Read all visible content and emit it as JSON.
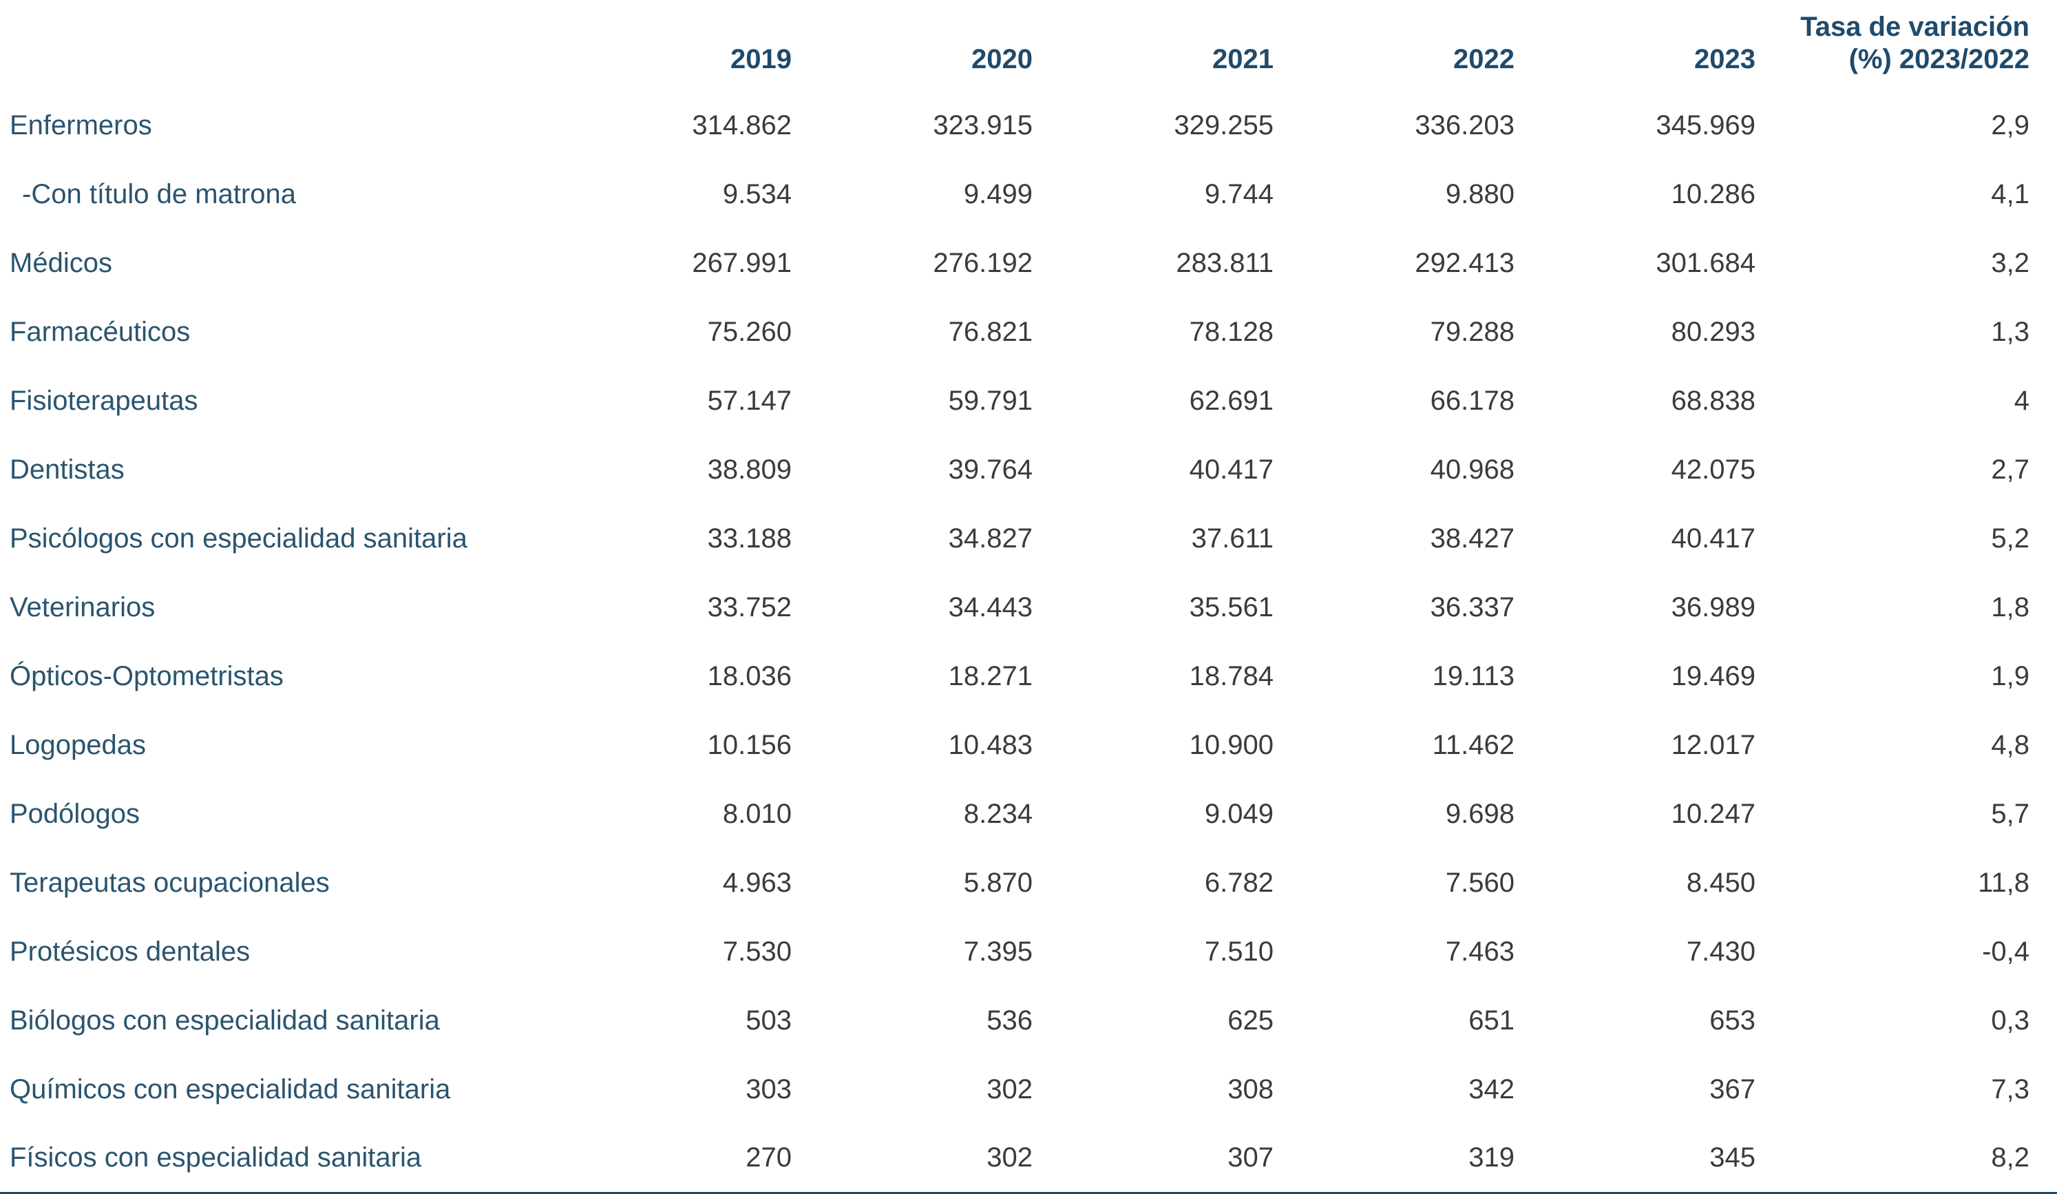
{
  "header": {
    "variation_line1": "Tasa de variación",
    "variation_line2": "(%) 2023/2022"
  },
  "chart_data": {
    "type": "table",
    "columns": [
      "2019",
      "2020",
      "2021",
      "2022",
      "2023",
      "Tasa de variación (%) 2023/2022"
    ],
    "rows": [
      {
        "label": "Enfermeros",
        "indent": false,
        "values": [
          "314.862",
          "323.915",
          "329.255",
          "336.203",
          "345.969",
          "2,9"
        ]
      },
      {
        "label": "-Con título de matrona",
        "indent": true,
        "values": [
          "9.534",
          "9.499",
          "9.744",
          "9.880",
          "10.286",
          "4,1"
        ]
      },
      {
        "label": "Médicos",
        "indent": false,
        "values": [
          "267.991",
          "276.192",
          "283.811",
          "292.413",
          "301.684",
          "3,2"
        ]
      },
      {
        "label": "Farmacéuticos",
        "indent": false,
        "values": [
          "75.260",
          "76.821",
          "78.128",
          "79.288",
          "80.293",
          "1,3"
        ]
      },
      {
        "label": "Fisioterapeutas",
        "indent": false,
        "values": [
          "57.147",
          "59.791",
          "62.691",
          "66.178",
          "68.838",
          "4"
        ]
      },
      {
        "label": "Dentistas",
        "indent": false,
        "values": [
          "38.809",
          "39.764",
          "40.417",
          "40.968",
          "42.075",
          "2,7"
        ]
      },
      {
        "label": "Psicólogos con especialidad sanitaria",
        "indent": false,
        "values": [
          "33.188",
          "34.827",
          "37.611",
          "38.427",
          "40.417",
          "5,2"
        ]
      },
      {
        "label": "Veterinarios",
        "indent": false,
        "values": [
          "33.752",
          "34.443",
          "35.561",
          "36.337",
          "36.989",
          "1,8"
        ]
      },
      {
        "label": "Ópticos-Optometristas",
        "indent": false,
        "values": [
          "18.036",
          "18.271",
          "18.784",
          "19.113",
          "19.469",
          "1,9"
        ]
      },
      {
        "label": "Logopedas",
        "indent": false,
        "values": [
          "10.156",
          "10.483",
          "10.900",
          "11.462",
          "12.017",
          "4,8"
        ]
      },
      {
        "label": "Podólogos",
        "indent": false,
        "values": [
          "8.010",
          "8.234",
          "9.049",
          "9.698",
          "10.247",
          "5,7"
        ]
      },
      {
        "label": "Terapeutas ocupacionales",
        "indent": false,
        "values": [
          "4.963",
          "5.870",
          "6.782",
          "7.560",
          "8.450",
          "11,8"
        ]
      },
      {
        "label": "Protésicos dentales",
        "indent": false,
        "values": [
          "7.530",
          "7.395",
          "7.510",
          "7.463",
          "7.430",
          "-0,4"
        ]
      },
      {
        "label": "Biólogos con especialidad sanitaria",
        "indent": false,
        "values": [
          "503",
          "536",
          "625",
          "651",
          "653",
          "0,3"
        ]
      },
      {
        "label": "Químicos con especialidad sanitaria",
        "indent": false,
        "values": [
          "303",
          "302",
          "308",
          "342",
          "367",
          "7,3"
        ]
      },
      {
        "label": "Físicos con especialidad sanitaria",
        "indent": false,
        "values": [
          "270",
          "302",
          "307",
          "319",
          "345",
          "8,2"
        ]
      }
    ],
    "colors": {
      "header_text": "#1F4A6B",
      "label_text": "#2A546F",
      "number_text": "#3B3B3B",
      "bottom_rule": "#1F4A6B",
      "background": "#FFFFFF"
    }
  }
}
